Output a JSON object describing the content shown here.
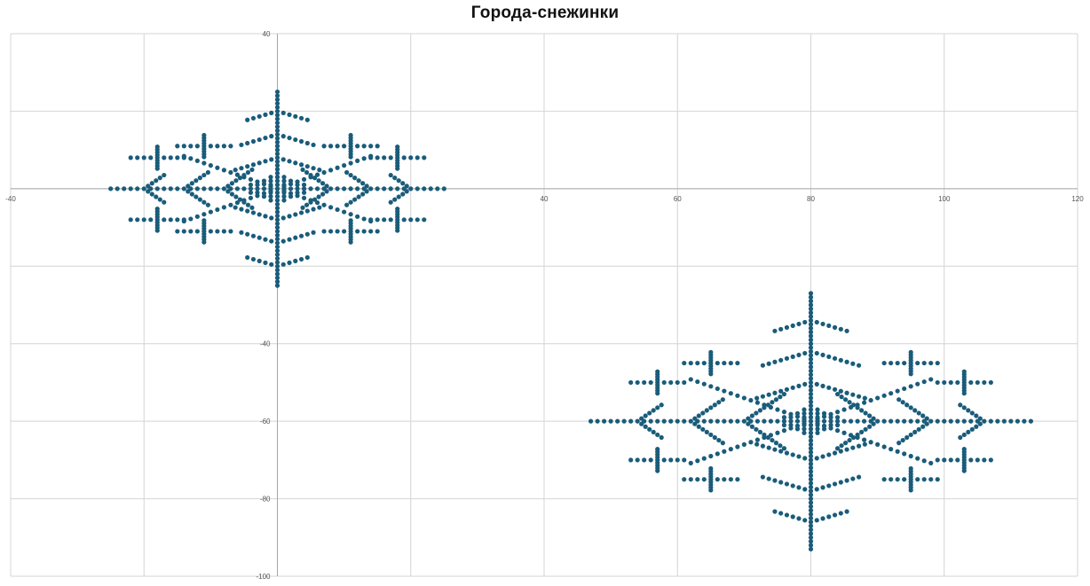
{
  "chart_data": {
    "type": "scatter",
    "title": "Города-снежинки",
    "xlim": [
      -40,
      120
    ],
    "ylim": [
      -100,
      40
    ],
    "x_ticks": [
      -40,
      40,
      60,
      80,
      100,
      120
    ],
    "y_ticks": [
      40,
      -40,
      -60,
      -80,
      -100
    ],
    "grid_x": [
      -40,
      -20,
      0,
      20,
      40,
      60,
      80,
      100,
      120
    ],
    "grid_y": [
      40,
      20,
      0,
      -20,
      -40,
      -60,
      -80,
      -100
    ],
    "grid": true,
    "marker_color": "#1a5c7a",
    "series": [
      {
        "shape": "snowflake",
        "center": [
          0,
          0
        ],
        "arm_length_x": 25,
        "arm_length_y": 25,
        "point_spacing": 1
      },
      {
        "shape": "snowflake",
        "center": [
          80,
          -60
        ],
        "arm_length_x": 33,
        "arm_length_y": 33,
        "point_spacing": 1
      }
    ]
  }
}
